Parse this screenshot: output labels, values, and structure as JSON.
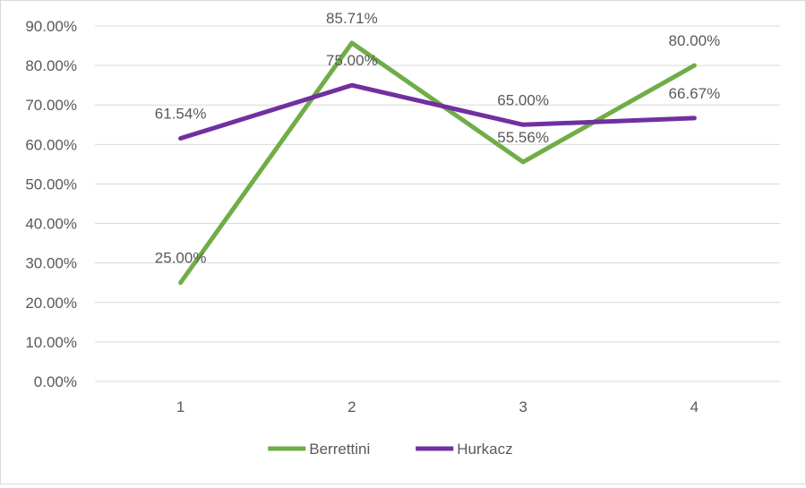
{
  "chart_data": {
    "type": "line",
    "title": "",
    "xlabel": "",
    "ylabel": "",
    "categories": [
      "1",
      "2",
      "3",
      "4"
    ],
    "ylim": [
      0,
      90
    ],
    "y_ticks": [
      0,
      10,
      20,
      30,
      40,
      50,
      60,
      70,
      80,
      90
    ],
    "y_tick_labels": [
      "0.00%",
      "10.00%",
      "20.00%",
      "30.00%",
      "40.00%",
      "50.00%",
      "60.00%",
      "70.00%",
      "80.00%",
      "90.00%"
    ],
    "grid": "horizontal",
    "legend_position": "bottom",
    "series": [
      {
        "name": "Berrettini",
        "color": "#70ad47",
        "values": [
          25.0,
          85.71,
          55.56,
          80.0
        ],
        "labels": [
          "25.00%",
          "85.71%",
          "55.56%",
          "80.00%"
        ]
      },
      {
        "name": "Hurkacz",
        "color": "#7030a0",
        "values": [
          61.54,
          75.0,
          65.0,
          66.67
        ],
        "labels": [
          "61.54%",
          "75.00%",
          "65.00%",
          "66.67%"
        ]
      }
    ]
  }
}
